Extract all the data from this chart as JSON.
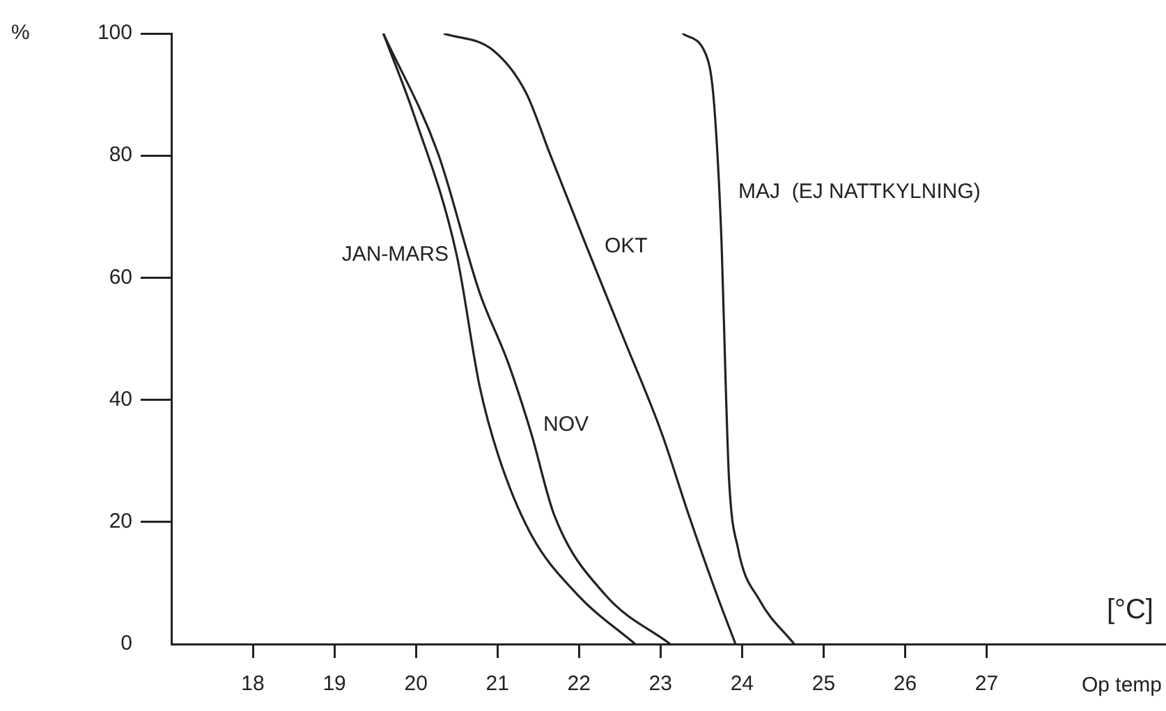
{
  "chart_data": {
    "type": "line",
    "xlabel": "Op temp",
    "ylabel": "%",
    "annotations": [
      "[°C]"
    ],
    "xlim": [
      17,
      29.2
    ],
    "xticks": [
      18,
      19,
      20,
      21,
      22,
      23,
      24,
      25,
      26,
      27
    ],
    "ylim": [
      0,
      100
    ],
    "yticks": [
      0,
      20,
      40,
      60,
      80,
      100
    ],
    "grid": false,
    "legend": false,
    "marker": "none",
    "line_style": "solid",
    "series": [
      {
        "name": "JAN-MARS",
        "color": "#222222",
        "x": [
          19.6,
          19.98,
          20.5,
          20.78,
          21.01,
          21.41,
          21.98,
          22.69
        ],
        "values": [
          100,
          86.5,
          63.7,
          42.3,
          30.9,
          18,
          8.1,
          0
        ]
      },
      {
        "name": "NOV",
        "color": "#222222",
        "x": [
          19.6,
          20.27,
          20.78,
          21.13,
          21.41,
          21.7,
          22.32,
          23.12
        ],
        "values": [
          100,
          80.4,
          57.6,
          46.1,
          34.7,
          21,
          8.1,
          0
        ]
      },
      {
        "name": "OKT",
        "color": "#222222",
        "x": [
          20.34,
          20.95,
          21.35,
          21.64,
          22.09,
          22.55,
          23.01,
          23.35,
          23.69,
          23.92
        ],
        "values": [
          100,
          97.2,
          90.3,
          80.4,
          65.2,
          50,
          34.7,
          21,
          8.1,
          0
        ]
      },
      {
        "name": "MAJ  (EJ NATTKYLNING)",
        "color": "#222222",
        "x": [
          23.27,
          23.58,
          23.66,
          23.75,
          23.8,
          23.84,
          23.95,
          24.21,
          24.64
        ],
        "values": [
          100,
          95.7,
          88,
          65.2,
          42.3,
          27.1,
          15.7,
          7.3,
          0
        ]
      }
    ]
  }
}
